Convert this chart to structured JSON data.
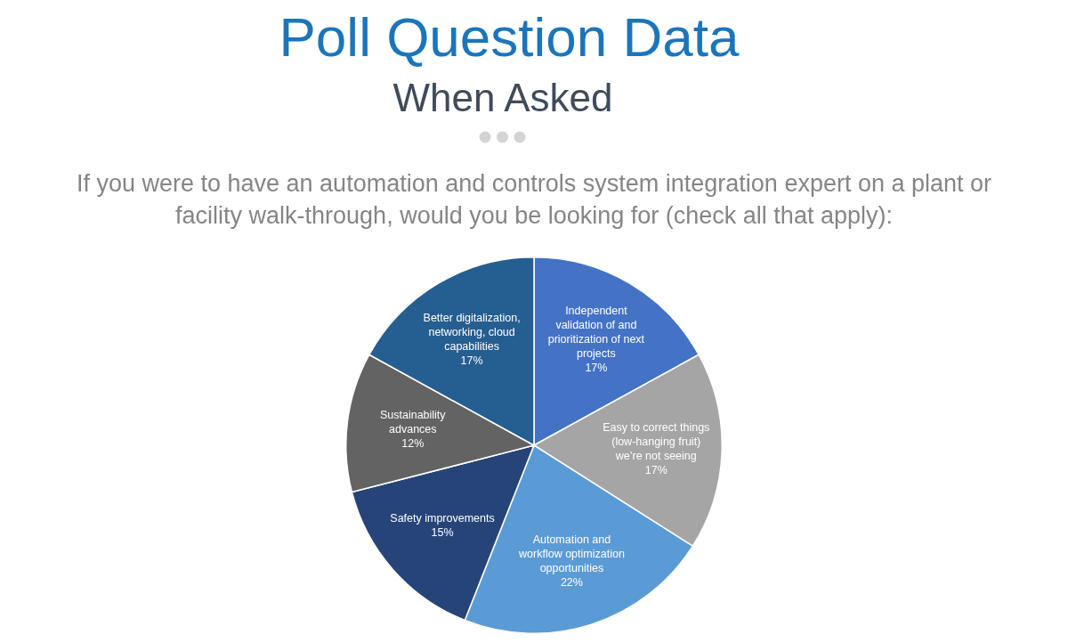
{
  "chart_data": {
    "type": "pie",
    "title": "Poll Question Data",
    "subtitle": "When Asked",
    "annotations": [
      "If you were to have an automation and controls system integration expert on a plant or facility walk-through, would you be looking for (check all that apply):"
    ],
    "categories": [
      "Independent validation of and prioritization of next projects",
      "Easy to correct things (low-hanging fruit) we’re not seeing",
      "Automation and workflow optimization opportunities",
      "Safety improvements",
      "Sustainability advances",
      "Better digitalization, networking, cloud capabilities"
    ],
    "values": [
      17,
      17,
      22,
      15,
      12,
      17
    ],
    "value_labels": [
      "17%",
      "17%",
      "22%",
      "15%",
      "12%",
      "17%"
    ],
    "colors": [
      "#4472c4",
      "#a5a5a5",
      "#5b9bd5",
      "#264478",
      "#636363",
      "#255e91"
    ]
  }
}
